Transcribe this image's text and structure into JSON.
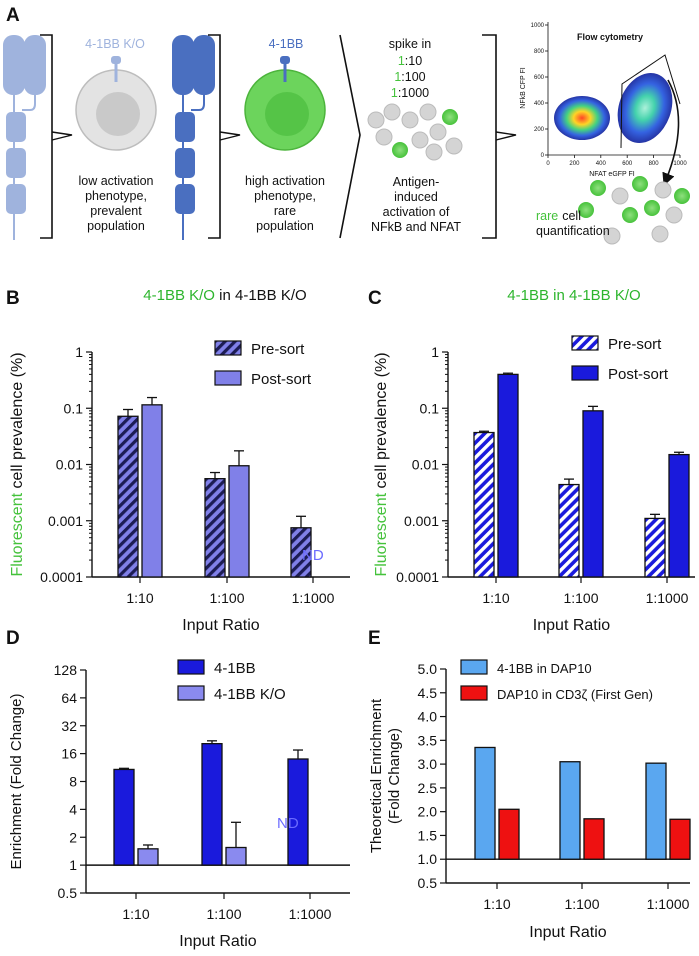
{
  "panel_letters": {
    "a": "A",
    "b": "B",
    "c": "C",
    "d": "D",
    "e": "E"
  },
  "schematic": {
    "ko_label": "4-1BB K/O",
    "bb_label": "4-1BB",
    "ko_caption": [
      "low activation",
      "phenotype,",
      "prevalent",
      "population"
    ],
    "bb_caption": [
      "high activation",
      "phenotype,",
      "rare",
      "population"
    ],
    "spike_title": "spike in",
    "spike_ratios": [
      "1:10",
      "1:100",
      "1:1000"
    ],
    "spike_caption": [
      "Antigen-",
      "induced",
      "activation of",
      "NFkB and NFAT"
    ],
    "flow_title": "Flow cytometry",
    "flow_xlabel": "NFAT eGFP FI",
    "flow_ylabel": "NFkB  CFP FI",
    "flow_xticks": [
      "0",
      "200",
      "400",
      "600",
      "800",
      "1000"
    ],
    "flow_yticks": [
      "0",
      "200",
      "400",
      "600",
      "800",
      "1000"
    ],
    "rare_word": "rare",
    "rare_rest": "cell",
    "quant_word": "quantification",
    "colors": {
      "ko": "#9fb3dd",
      "bb": "#4a6fc0",
      "green": "#44c23b",
      "grey": "#d4d4d4"
    }
  },
  "colors": {
    "green_text": "#44c23b",
    "title_green": "#2db52d",
    "nd_color": "#6b6bff"
  },
  "chart_data": [
    {
      "panel": "B",
      "type": "bar",
      "scale": "log10",
      "title_green": "4-1BB K/O",
      "title_rest": " in 4-1BB K/O",
      "ylabel_green": "Fluorescent",
      "ylabel_rest": " cell prevalence (%)",
      "xlabel": "Input Ratio",
      "categories": [
        "1:10",
        "1:100",
        "1:1000"
      ],
      "yticks": [
        "1",
        "0.1",
        "0.01",
        "0.001",
        "0.0001"
      ],
      "ylim": [
        0.0001,
        1
      ],
      "series": [
        {
          "name": "Pre-sort",
          "color": "#8080e8",
          "pattern": "dark-hatch",
          "values": [
            0.072,
            0.0056,
            0.00075
          ],
          "errors": [
            0.095,
            0.0072,
            0.0012
          ]
        },
        {
          "name": "Post-sort",
          "color": "#8080e8",
          "pattern": "solid",
          "values": [
            0.115,
            0.0095,
            null
          ],
          "errors": [
            0.155,
            0.0175,
            null
          ]
        }
      ],
      "nd_label": "ND"
    },
    {
      "panel": "C",
      "type": "bar",
      "scale": "log10",
      "title_green": "4-1BB in 4-1BB K/O",
      "title_rest": "",
      "ylabel_green": "Fluorescent",
      "ylabel_rest": " cell prevalence (%)",
      "xlabel": "Input Ratio",
      "categories": [
        "1:10",
        "1:100",
        "1:1000"
      ],
      "yticks": [
        "1",
        "0.1",
        "0.01",
        "0.001",
        "0.0001"
      ],
      "ylim": [
        0.0001,
        1
      ],
      "series": [
        {
          "name": "Pre-sort",
          "color": "#1a1adc",
          "pattern": "white-hatch",
          "values": [
            0.037,
            0.0044,
            0.0011
          ],
          "errors": [
            0.039,
            0.0055,
            0.0013
          ]
        },
        {
          "name": "Post-sort",
          "color": "#1a1adc",
          "pattern": "solid",
          "values": [
            0.4,
            0.09,
            0.015
          ],
          "errors": [
            0.42,
            0.108,
            0.0165
          ]
        }
      ]
    },
    {
      "panel": "D",
      "type": "bar",
      "scale": "log2",
      "ylabel": "Enrichment (Fold Change)",
      "xlabel": "Input Ratio",
      "categories": [
        "1:10",
        "1:100",
        "1:1000"
      ],
      "yticks": [
        "128",
        "64",
        "32",
        "16",
        "8",
        "4",
        "2",
        "1",
        "0.5"
      ],
      "ylim": [
        0.5,
        128
      ],
      "baseline": 1,
      "series": [
        {
          "name": "4-1BB",
          "color": "#1a1adc",
          "pattern": "solid",
          "values": [
            10.8,
            20.5,
            14
          ],
          "errors": [
            11.1,
            22,
            17.5
          ]
        },
        {
          "name": "4-1BB K/O",
          "color": "#8a8aef",
          "pattern": "solid",
          "values": [
            1.5,
            1.55,
            null
          ],
          "errors": [
            1.65,
            2.9,
            null
          ]
        }
      ],
      "nd_label": "ND"
    },
    {
      "panel": "E",
      "type": "bar",
      "scale": "linear",
      "ylabel": "Theoretical Enrichment (Fold  Change)",
      "ylabel_lines": [
        "Theoretical Enrichment",
        "(Fold  Change)"
      ],
      "xlabel": "Input Ratio",
      "categories": [
        "1:10",
        "1:100",
        "1:1000"
      ],
      "yticks": [
        "5.0",
        "4.5",
        "4.0",
        "3.5",
        "3.0",
        "2.5",
        "2.0",
        "1.5",
        "1.0",
        "0.5"
      ],
      "ylim": [
        0.5,
        5.0
      ],
      "baseline": 1.0,
      "series": [
        {
          "name": "4-1BB in DAP10",
          "color": "#5aa7f0",
          "pattern": "solid",
          "values": [
            3.35,
            3.05,
            3.02
          ]
        },
        {
          "name": "DAP10 in CD3ζ (First Gen)",
          "color": "#ee1111",
          "pattern": "solid",
          "values": [
            2.05,
            1.85,
            1.84
          ]
        }
      ]
    }
  ]
}
